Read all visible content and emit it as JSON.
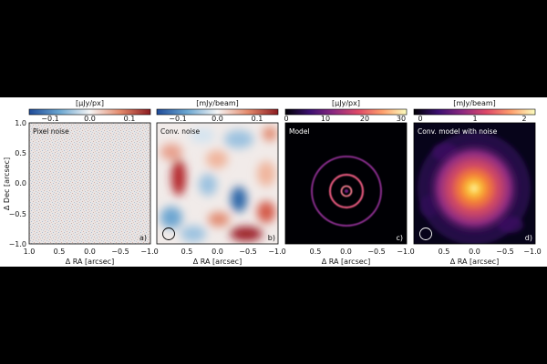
{
  "figure": {
    "y_axis_label": "Δ Dec [arcsec]",
    "y_ticks": [
      "1.0",
      "0.5",
      "0.0",
      "−0.5",
      "−1.0"
    ],
    "panels": [
      {
        "id": "a",
        "title": "Pixel noise",
        "letter": "a)",
        "colorbar_unit": "[μJy/px]",
        "colorbar_ticks": [
          "−0.1",
          "0.0",
          "0.1"
        ],
        "colormap": "diverging red-blue",
        "x_axis_label": "Δ RA [arcsec]",
        "x_ticks": [
          "1.0",
          "0.5",
          "0.0",
          "−0.5",
          "−1.0"
        ],
        "beam_shown": false
      },
      {
        "id": "b",
        "title": "Conv. noise",
        "letter": "b)",
        "colorbar_unit": "[mJy/beam]",
        "colorbar_ticks": [
          "−0.1",
          "0.0",
          "0.1"
        ],
        "colormap": "diverging red-blue",
        "x_axis_label": "Δ RA [arcsec]",
        "x_ticks": [
          "0.5",
          "0.0",
          "−0.5",
          "−1.0"
        ],
        "beam_shown": true
      },
      {
        "id": "c",
        "title": "Model",
        "letter": "c)",
        "colorbar_unit": "[μJy/px]",
        "colorbar_ticks": [
          "0",
          "10",
          "20",
          "30"
        ],
        "colormap": "inferno",
        "x_axis_label": "Δ RA [arcsec]",
        "x_ticks": [
          "0.5",
          "0.0",
          "−0.5",
          "−1.0"
        ],
        "beam_shown": false
      },
      {
        "id": "d",
        "title": "Conv. model with noise",
        "letter": "d)",
        "colorbar_unit": "[mJy/beam]",
        "colorbar_ticks": [
          "0",
          "1",
          "2"
        ],
        "colormap": "inferno",
        "x_axis_label": "Δ RA [arcsec]",
        "x_ticks": [
          "0.5",
          "0.0",
          "−0.5",
          "−1.0"
        ],
        "beam_shown": true
      }
    ]
  }
}
